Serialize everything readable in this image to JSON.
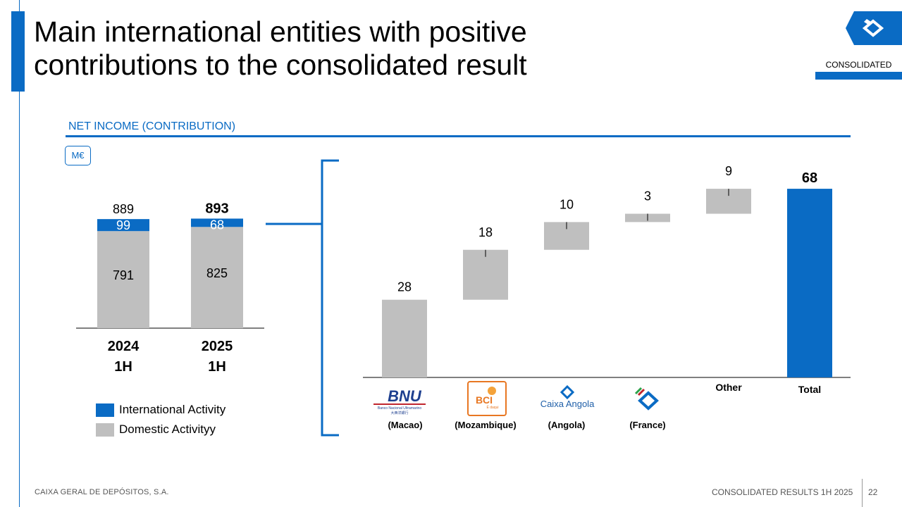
{
  "slide": {
    "title_line1": "Main international entities with positive",
    "title_line2": "contributions to the consolidated result",
    "scope_label": "CONSOLIDATED",
    "section_title": "NET INCOME (CONTRIBUTION)",
    "unit": "M€"
  },
  "legend": {
    "international_label": "International Activity",
    "domestic_label": "Domestic Activityy",
    "international_color": "#0a6bc4",
    "domestic_color": "#bfbfbf"
  },
  "logos": {
    "bnu_name": "BNU",
    "bnu_sub": "Banco Nacional Ultramarino",
    "bnu_cn": "大西洋銀行",
    "bci_name": "BCI",
    "bci_tag": "É daqui",
    "angola_name": "Caixa Angola"
  },
  "chart_data": [
    {
      "type": "bar",
      "stacked": true,
      "categories": [
        {
          "line1": "2024",
          "line2": "1H",
          "total": "889",
          "total_bold": false
        },
        {
          "line1": "2025",
          "line2": "1H",
          "total": "893",
          "total_bold": true
        }
      ],
      "series": [
        {
          "name": "Domestic Activityy",
          "color": "#bfbfbf",
          "values": [
            791,
            825
          ]
        },
        {
          "name": "International Activity",
          "color": "#0a6bc4",
          "values": [
            99,
            68
          ]
        }
      ],
      "totals": [
        889,
        893
      ],
      "ylim": [
        0,
        900
      ]
    },
    {
      "type": "bar",
      "subtype": "waterfall",
      "categories": [
        {
          "name": "(Macao)",
          "logo": "bnu-logo"
        },
        {
          "name": "(Mozambique)",
          "logo": "bci-logo"
        },
        {
          "name": "(Angola)",
          "logo": "caixa-angola-logo"
        },
        {
          "name": "(France)",
          "logo": "cgd-france-logo"
        },
        {
          "name": "Other",
          "logo": ""
        },
        {
          "name": "Total",
          "logo": ""
        }
      ],
      "values": [
        28,
        18,
        10,
        3,
        9,
        68
      ],
      "value_labels": [
        "28",
        "18",
        "10",
        "3",
        "9",
        "68"
      ],
      "is_total": [
        false,
        false,
        false,
        false,
        false,
        true
      ],
      "colors": {
        "step": "#bfbfbf",
        "total": "#0a6bc4"
      },
      "ylim": [
        0,
        70
      ]
    }
  ],
  "footer": {
    "company": "CAIXA GERAL DE DEPÓSITOS, S.A.",
    "report": "CONSOLIDATED RESULTS 1H 2025",
    "page": "22"
  }
}
